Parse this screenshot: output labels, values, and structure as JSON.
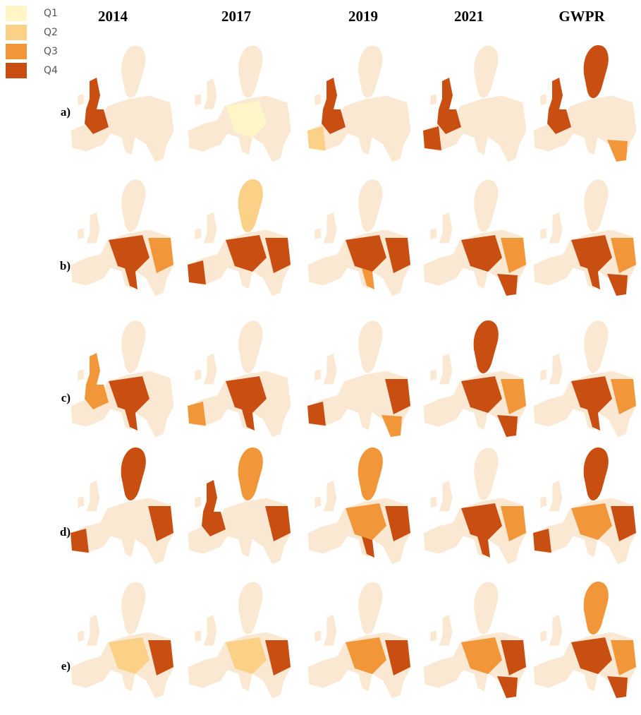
{
  "legend": [
    {
      "label": "Q1",
      "color": "#fff6c8"
    },
    {
      "label": "Q2",
      "color": "#fbd187"
    },
    {
      "label": "Q3",
      "color": "#f2963a"
    },
    {
      "label": "Q4",
      "color": "#c94e12"
    }
  ],
  "columns": [
    "2014",
    "2017",
    "2019",
    "2021",
    "GWPR"
  ],
  "rows": [
    "a)",
    "b)",
    "c)",
    "d)",
    "e)"
  ]
}
